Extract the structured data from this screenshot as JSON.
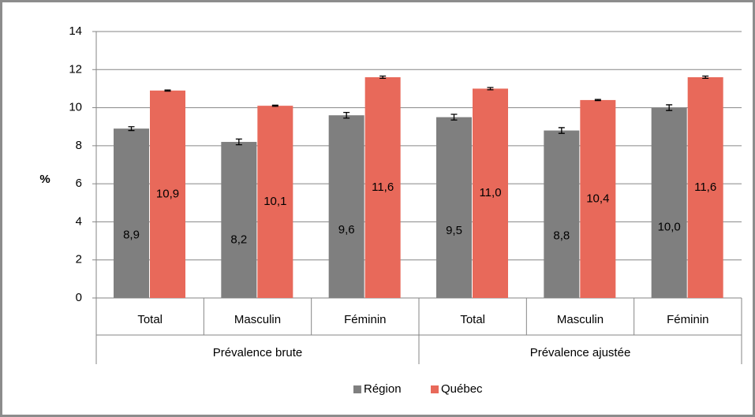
{
  "chart_data": {
    "type": "bar",
    "y_label": "%",
    "categories": [
      "Total",
      "Masculin",
      "Féminin",
      "Total",
      "Masculin",
      "Féminin"
    ],
    "groups": [
      {
        "name": "Prévalence brute",
        "size": 3
      },
      {
        "name": "Prévalence ajustée",
        "size": 3
      }
    ],
    "series": [
      {
        "name": "Région",
        "color": "#7f7f7f",
        "values": [
          8.9,
          8.2,
          9.6,
          9.5,
          8.8,
          10.0
        ],
        "value_labels": [
          "8,9",
          "8,2",
          "9,6",
          "9,5",
          "8,8",
          "10,0"
        ],
        "errors": [
          0.1,
          0.15,
          0.15,
          0.15,
          0.15,
          0.15
        ]
      },
      {
        "name": "Québec",
        "color": "#e8695a",
        "values": [
          10.9,
          10.1,
          11.6,
          11.0,
          10.4,
          11.6
        ],
        "value_labels": [
          "10,9",
          "10,1",
          "11,6",
          "11,0",
          "10,4",
          "11,6"
        ],
        "errors": [
          0.03,
          0.03,
          0.06,
          0.06,
          0.03,
          0.06
        ]
      }
    ],
    "ylim": [
      0,
      14
    ],
    "yticks": [
      0,
      2,
      4,
      6,
      8,
      10,
      12,
      14
    ],
    "grid": true,
    "legend": "bottom"
  }
}
